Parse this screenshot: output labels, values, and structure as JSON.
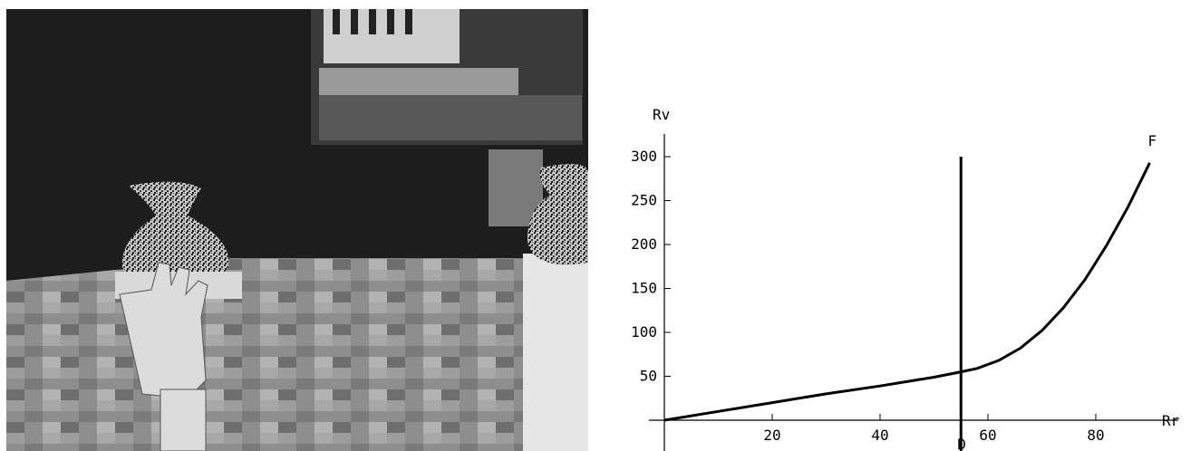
{
  "photo": {
    "description_icon": "vr-hand-grasping-vase-icon"
  },
  "chart_data": {
    "type": "line",
    "xlabel": "Rr",
    "ylabel": "Rv",
    "xlim": [
      0,
      92
    ],
    "ylim": [
      -10,
      330
    ],
    "xticks": [
      20,
      40,
      60,
      80
    ],
    "yticks": [
      50,
      100,
      150,
      200,
      250,
      300
    ],
    "grid": false,
    "series": [
      {
        "x": [
          0,
          10,
          20,
          30,
          40,
          50,
          55,
          58,
          62,
          66,
          70,
          74,
          78,
          82,
          86,
          90
        ],
        "y": [
          0,
          10,
          20,
          30,
          39,
          49,
          55,
          59,
          68,
          82,
          102,
          128,
          160,
          199,
          243,
          293
        ]
      }
    ],
    "vertical_line": {
      "x": 55,
      "y_top": 300
    },
    "annotations": [
      {
        "text": "D",
        "x": 55
      },
      {
        "text": "F",
        "x": 90
      }
    ]
  }
}
